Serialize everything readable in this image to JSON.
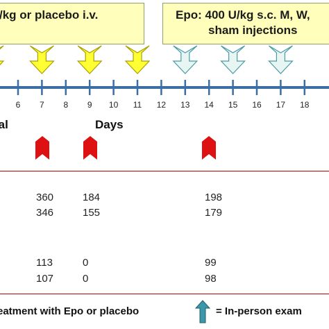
{
  "boxes": {
    "left": {
      "line1": "/kg or placebo i.v."
    },
    "right": {
      "line1": "Epo: 400 U/kg s.c. M, W,",
      "line2": "sham injections"
    }
  },
  "timeline": {
    "ticks": [
      "6",
      "7",
      "8",
      "9",
      "10",
      "11",
      "12",
      "13",
      "14",
      "15",
      "16",
      "17",
      "18"
    ],
    "colors": {
      "axis": "#3b6ea5",
      "iv_arrow": "#ffff33",
      "sc_arrow": "#e8f6f3",
      "exam_arrow": "#3c98a8"
    }
  },
  "labels": {
    "natal": "tal",
    "days": "Days"
  },
  "markers": {
    "color": "#dd1111"
  },
  "table": {
    "group1": [
      [
        "360",
        "184",
        "198"
      ],
      [
        "346",
        "155",
        "179"
      ]
    ],
    "group2": [
      [
        "113",
        "0",
        "99"
      ],
      [
        "107",
        "0",
        "98"
      ]
    ]
  },
  "legend": {
    "treatment": "eatment with Epo or placebo",
    "exam": "= In-person exam"
  }
}
